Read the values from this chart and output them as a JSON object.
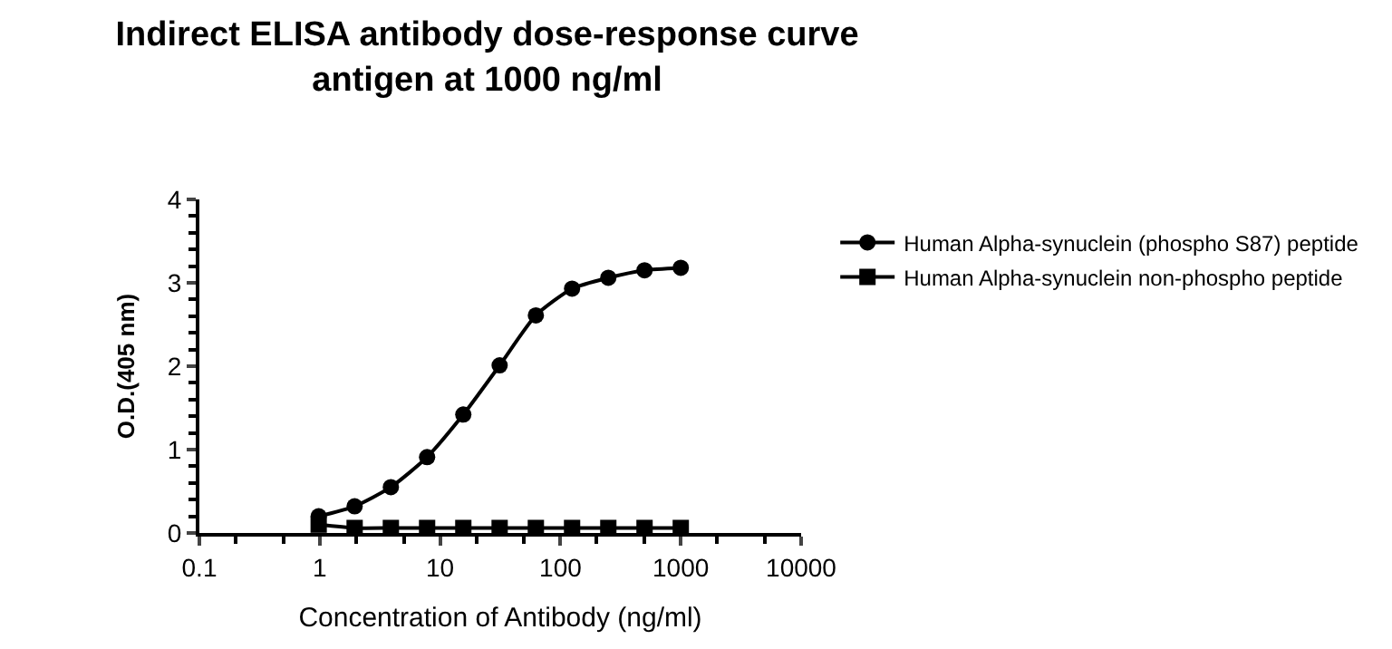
{
  "chart_data": {
    "type": "line",
    "title": "Indirect ELISA antibody dose-response curve\nantigen at 1000 ng/ml",
    "xlabel": "Concentration of Antibody (ng/ml)",
    "ylabel": "O.D.(405 nm)",
    "x": [
      0.98,
      1.95,
      3.9,
      7.8,
      15.6,
      31.25,
      62.5,
      125,
      250,
      500,
      1000
    ],
    "series": [
      {
        "name": "Human Alpha-synuclein (phospho S87) peptide",
        "color": "#000000",
        "marker": "circle",
        "values": [
          0.2,
          0.32,
          0.55,
          0.91,
          1.42,
          2.01,
          2.61,
          2.93,
          3.06,
          3.15,
          3.18
        ]
      },
      {
        "name": "Human Alpha-synuclein non-phospho peptide",
        "color": "#000000",
        "marker": "square",
        "values": [
          0.1,
          0.06,
          0.06,
          0.06,
          0.06,
          0.06,
          0.06,
          0.06,
          0.06,
          0.06,
          0.06
        ]
      }
    ],
    "log": "x",
    "xlim": [
      0.1,
      10000
    ],
    "xticks": [
      0.1,
      1,
      10,
      100,
      1000,
      10000
    ],
    "ylim": [
      0,
      4
    ],
    "yticks": [
      0,
      1,
      2,
      3,
      4
    ],
    "legend": "right",
    "line_style": "solid"
  }
}
